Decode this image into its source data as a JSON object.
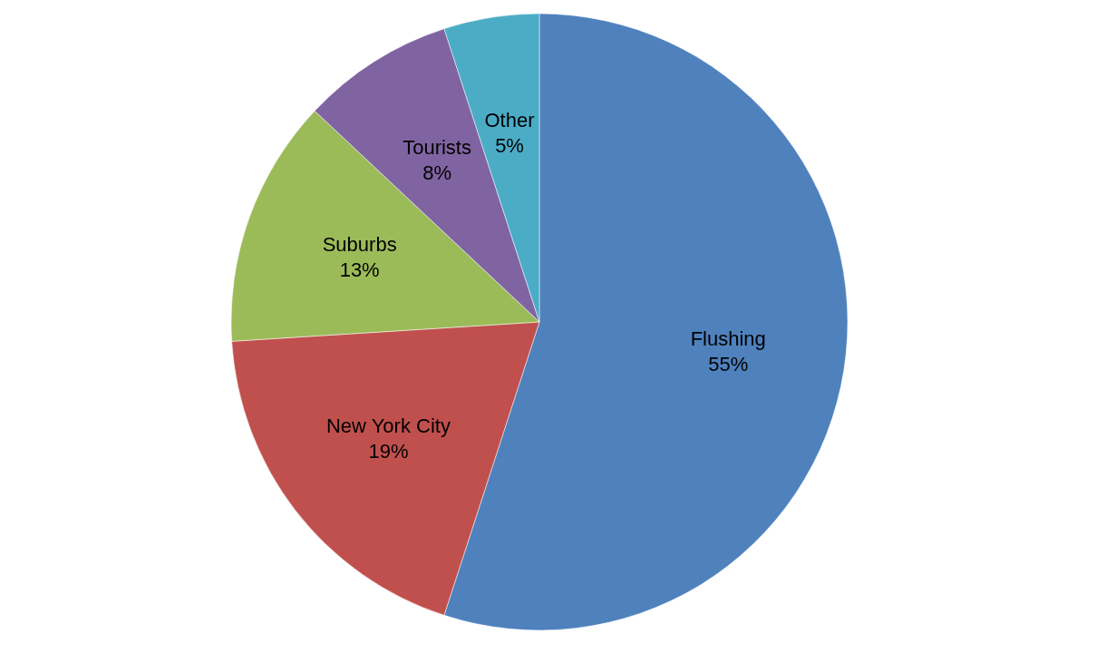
{
  "chart_data": {
    "type": "pie",
    "categories": [
      "Flushing",
      "New York City",
      "Suburbs",
      "Tourists",
      "Other"
    ],
    "values": [
      55,
      19,
      13,
      8,
      5
    ],
    "colors": [
      "#4f81bd",
      "#c0504d",
      "#9bbb59",
      "#8064a2",
      "#4bacc6"
    ],
    "value_labels": [
      "55%",
      "19%",
      "13%",
      "8%",
      "5%"
    ],
    "legend": false
  }
}
